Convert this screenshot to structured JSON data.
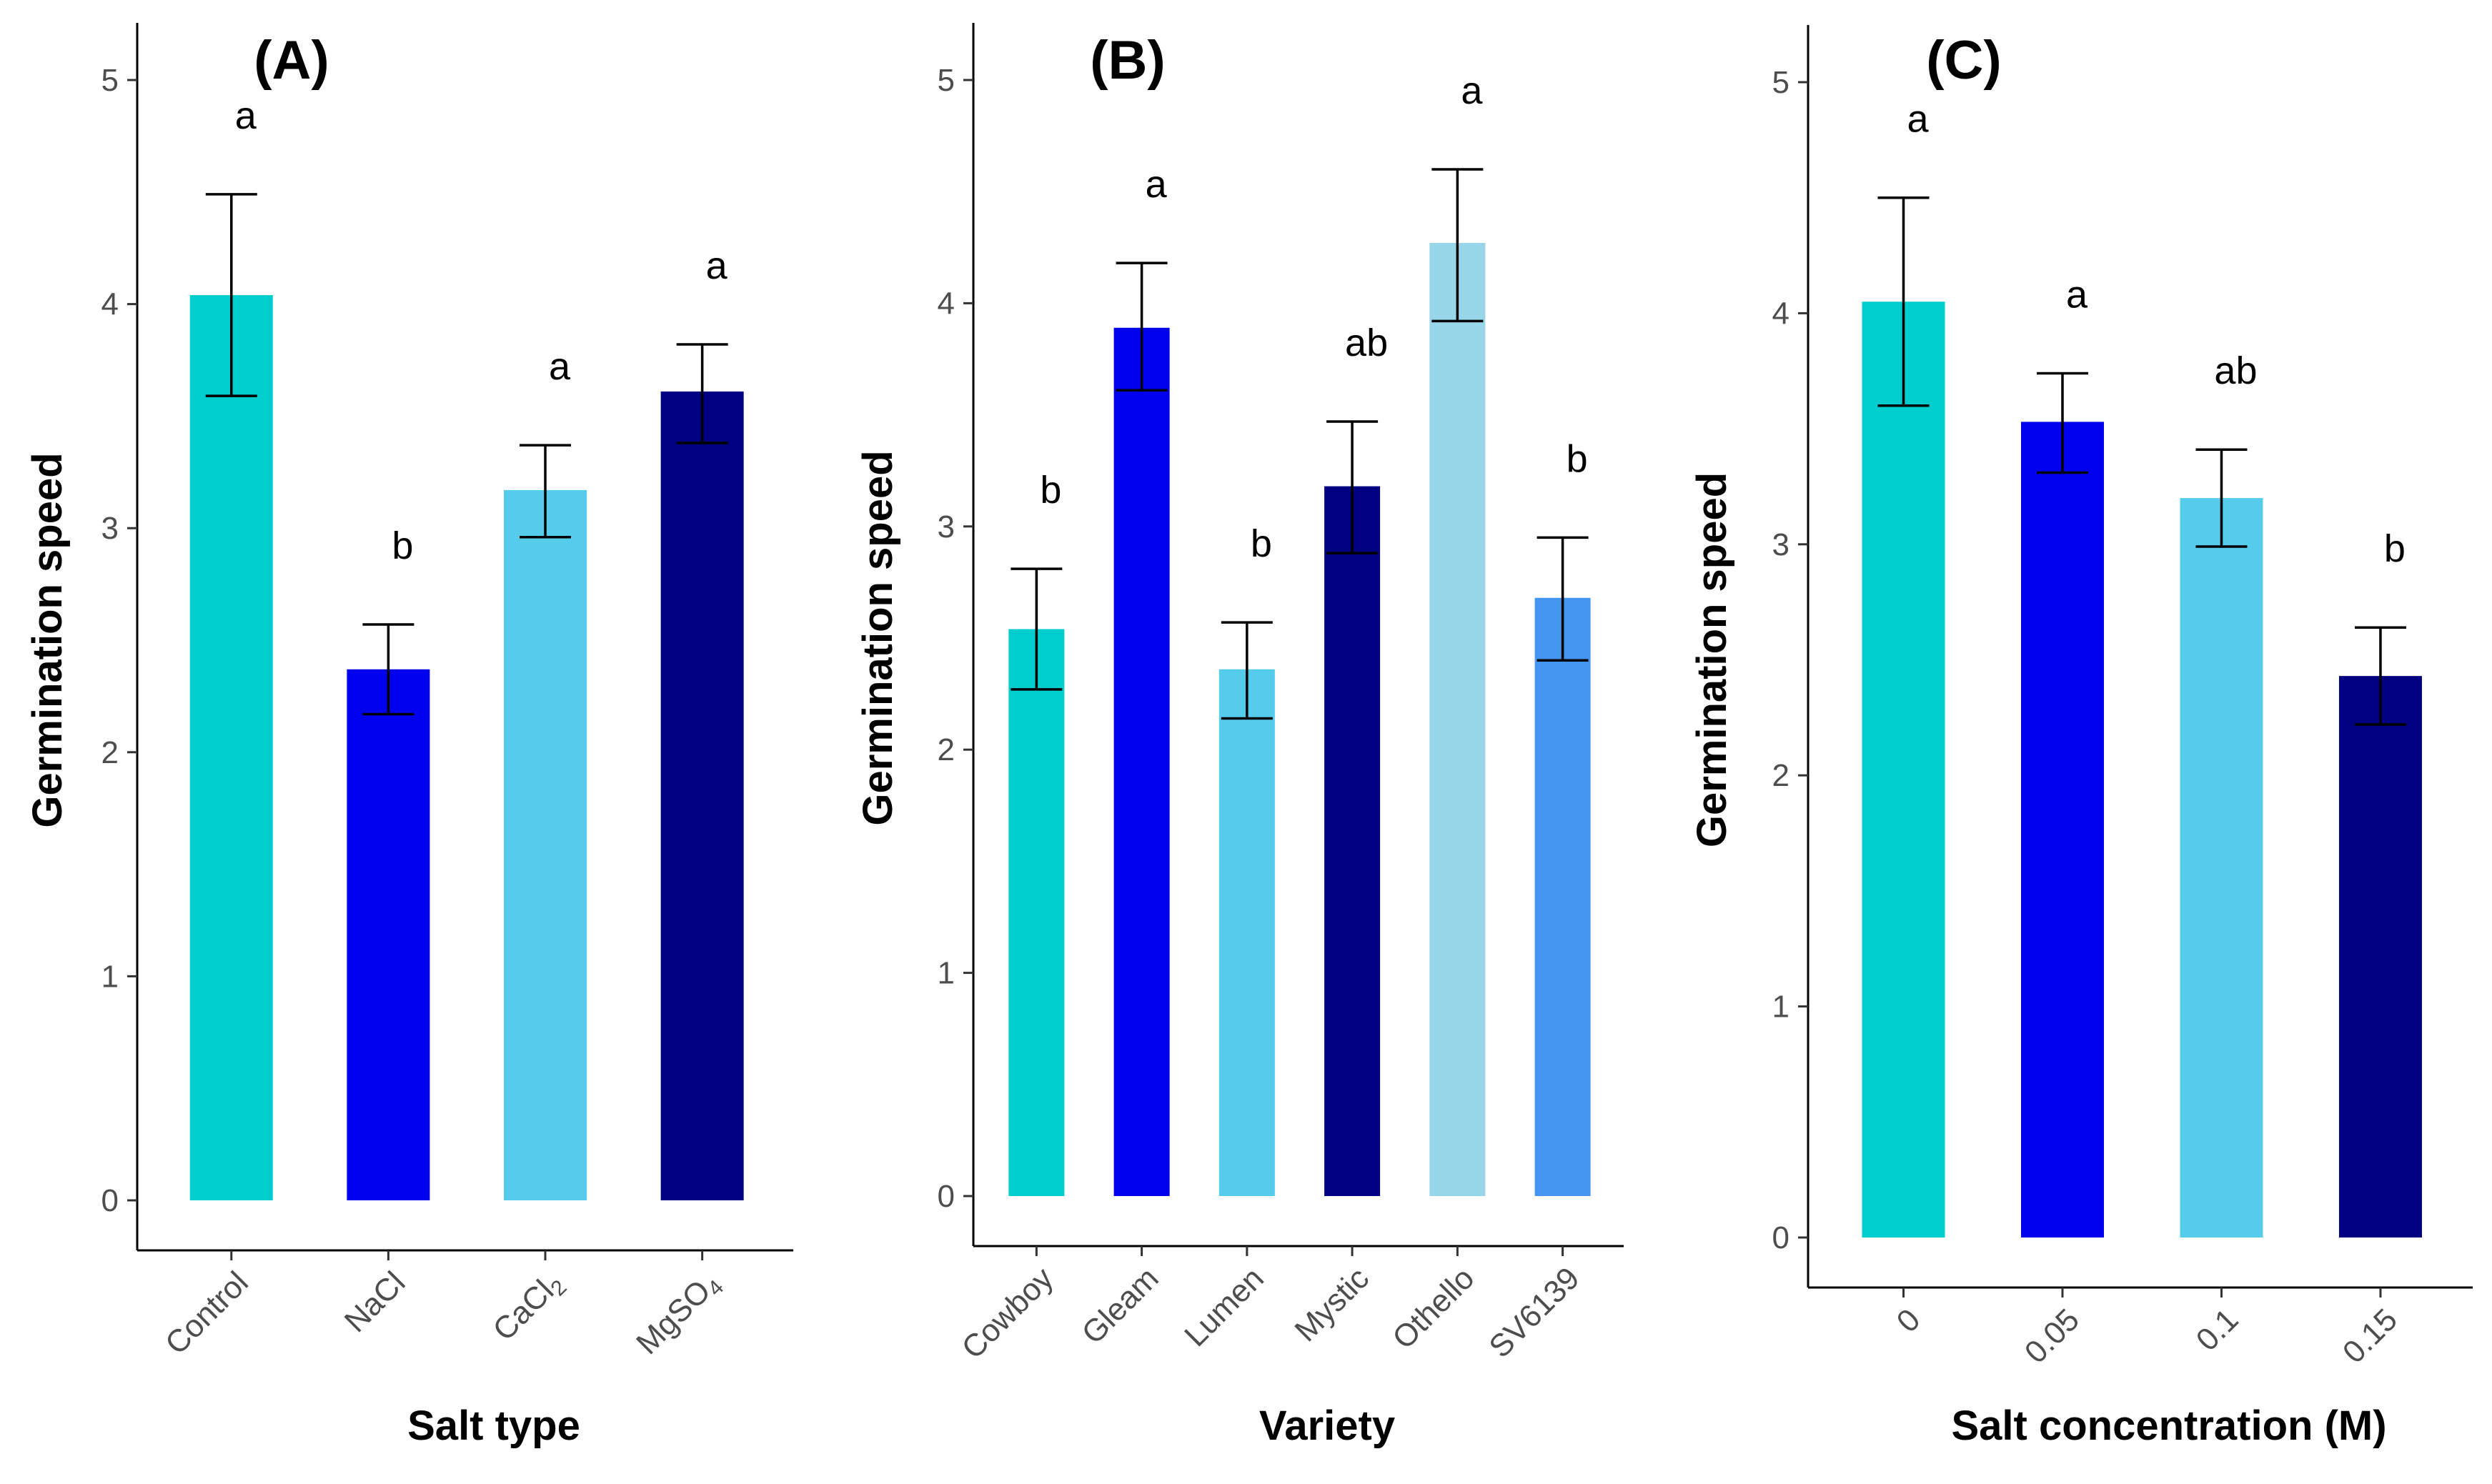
{
  "chart_data": [
    {
      "type": "bar",
      "panel_label": "(A)",
      "title": "",
      "xlabel": "Salt type",
      "ylabel": "Germination speed",
      "ylim": [
        0,
        5
      ],
      "yticks": [
        "0",
        "1",
        "2",
        "3",
        "4",
        "5"
      ],
      "grid": false,
      "categories": [
        {
          "name": "Control",
          "sub": ""
        },
        {
          "name": "NaCl",
          "sub": ""
        },
        {
          "name": "CaCl",
          "sub": "2"
        },
        {
          "name": "MgSO",
          "sub": "4"
        }
      ],
      "values": [
        4.04,
        2.37,
        3.17,
        3.61
      ],
      "error_low": [
        3.59,
        2.17,
        2.96,
        3.38
      ],
      "error_high": [
        4.49,
        2.57,
        3.37,
        3.82
      ],
      "significance": [
        "a",
        "b",
        "a",
        "a"
      ],
      "colors": [
        "#00CDCD",
        "#0000EE",
        "#56CCED",
        "#000080"
      ]
    },
    {
      "type": "bar",
      "panel_label": "(B)",
      "title": "",
      "xlabel": "Variety",
      "ylabel": "Germination speed",
      "ylim": [
        0,
        5
      ],
      "yticks": [
        "0",
        "1",
        "2",
        "3",
        "4",
        "5"
      ],
      "grid": false,
      "categories": [
        {
          "name": "Cowboy",
          "sub": ""
        },
        {
          "name": "Gleam",
          "sub": ""
        },
        {
          "name": "Lumen",
          "sub": ""
        },
        {
          "name": "Mystic",
          "sub": ""
        },
        {
          "name": "Othello",
          "sub": ""
        },
        {
          "name": "SV6139",
          "sub": ""
        }
      ],
      "values": [
        2.54,
        3.89,
        2.36,
        3.18,
        4.27,
        2.68
      ],
      "error_low": [
        2.27,
        3.61,
        2.14,
        2.88,
        3.92,
        2.4
      ],
      "error_high": [
        2.81,
        4.18,
        2.57,
        3.47,
        4.6,
        2.95
      ],
      "significance": [
        "b",
        "a",
        "b",
        "ab",
        "a",
        "b"
      ],
      "colors": [
        "#00CDCD",
        "#0000EE",
        "#56CCED",
        "#000080",
        "#97D6E8",
        "#4395F0"
      ]
    },
    {
      "type": "bar",
      "panel_label": "(C)",
      "title": "",
      "xlabel": "Salt concentration (M)",
      "ylabel": "Germination speed",
      "ylim": [
        0,
        5
      ],
      "yticks": [
        "0",
        "1",
        "2",
        "3",
        "4",
        "5"
      ],
      "grid": false,
      "categories": [
        {
          "name": "0",
          "sub": ""
        },
        {
          "name": "0.05",
          "sub": ""
        },
        {
          "name": "0.1",
          "sub": ""
        },
        {
          "name": "0.15",
          "sub": ""
        }
      ],
      "values": [
        4.05,
        3.53,
        3.2,
        2.43
      ],
      "error_low": [
        3.6,
        3.31,
        2.99,
        2.22
      ],
      "error_high": [
        4.5,
        3.74,
        3.41,
        2.64
      ],
      "significance": [
        "a",
        "a",
        "ab",
        "b"
      ],
      "colors": [
        "#00CDCD",
        "#0000EE",
        "#56CCED",
        "#000080"
      ]
    }
  ]
}
